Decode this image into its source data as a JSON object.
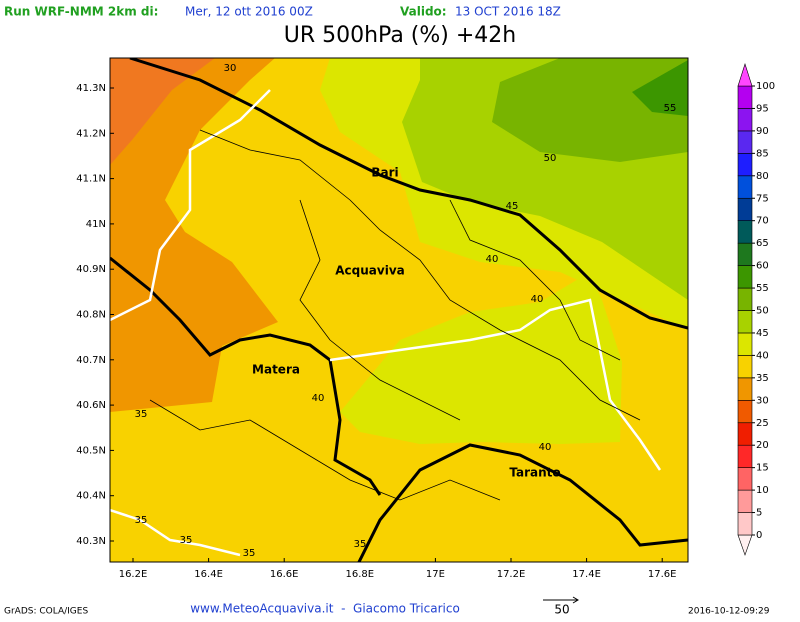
{
  "header": {
    "run_label": "Run WRF-NMM 2km di:",
    "run_date": "Mer, 12 ott 2016 00Z",
    "valid_label": "Valido:",
    "valid_date": "13 OCT 2016 18Z",
    "title": "UR 500hPa (%) +42h"
  },
  "map": {
    "lat_labels": [
      "41.3N",
      "41.2N",
      "41.1N",
      "41N",
      "40.9N",
      "40.8N",
      "40.7N",
      "40.6N",
      "40.5N",
      "40.4N",
      "40.3N"
    ],
    "lon_labels": [
      "16.2E",
      "16.4E",
      "16.6E",
      "16.8E",
      "17E",
      "17.2E",
      "17.4E",
      "17.6E"
    ],
    "contour_labels": [
      "30",
      "35",
      "35",
      "35",
      "35",
      "35",
      "40",
      "40",
      "40",
      "40",
      "45",
      "50",
      "55"
    ],
    "places": [
      "Bari",
      "Acquaviva",
      "Matera",
      "Taranto"
    ]
  },
  "colorbar": {
    "ticks": [
      0,
      5,
      10,
      15,
      20,
      25,
      30,
      35,
      40,
      45,
      50,
      55,
      60,
      65,
      70,
      75,
      80,
      85,
      90,
      95,
      100
    ],
    "colors": [
      "#fff0f0",
      "#ffc8c8",
      "#ff9a9a",
      "#ff6464",
      "#ff2828",
      "#f01e00",
      "#f05a00",
      "#f09600",
      "#f8d200",
      "#dce600",
      "#a8d200",
      "#78b400",
      "#3c9600",
      "#1e781e",
      "#005a5a",
      "#003c96",
      "#0050dc",
      "#1e1eff",
      "#5a28f0",
      "#8c14f0",
      "#b400f0",
      "#ff46ff"
    ]
  },
  "footer": {
    "software": "GrADS: COLA/IGES",
    "credit": "www.MeteoAcquaviva.it  -  Giacomo Tricarico",
    "wind_scale": "50",
    "timestamp": "2016-10-12-09:29"
  }
}
